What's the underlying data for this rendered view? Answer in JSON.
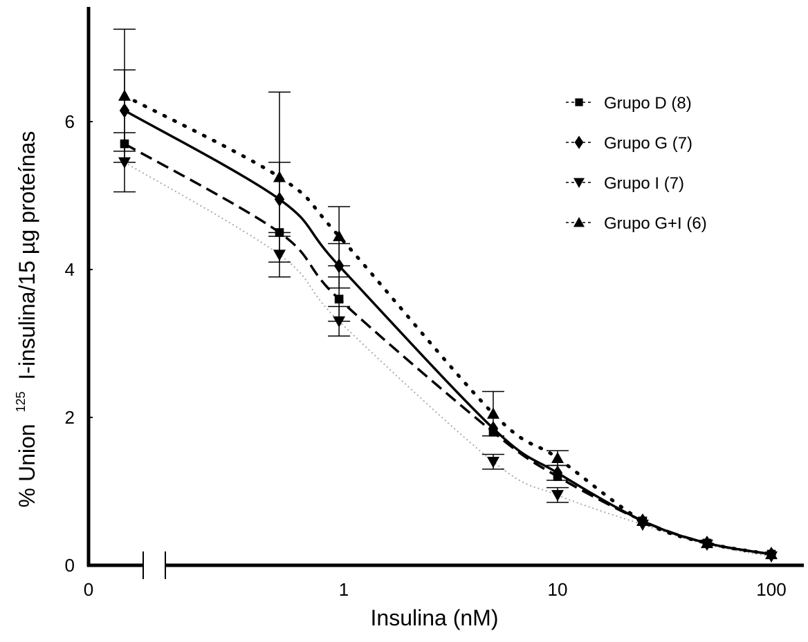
{
  "chart_data": {
    "type": "line",
    "title": "",
    "xlabel": "Insulina (nM)",
    "ylabel_prefix": "% Union",
    "ylabel_superscript": "125",
    "ylabel_suffix": "I-insulina/15 µg proteínas",
    "x_scale": "log with axis break (control point at 0)",
    "x_ticks": [
      "0",
      "1",
      "10",
      "100"
    ],
    "y_ticks": [
      "0",
      "2",
      "4",
      "6"
    ],
    "ylim": [
      0,
      7.3
    ],
    "grid": false,
    "legend_position": "top-right",
    "x": [
      0,
      0.5,
      0.95,
      5,
      10,
      25,
      50,
      100
    ],
    "series": [
      {
        "name": "Grupo D (8)",
        "marker": "square",
        "line_style": "dashed",
        "points": [
          [
            0,
            5.7
          ],
          [
            0.5,
            4.5
          ],
          [
            0.95,
            3.6
          ],
          [
            5,
            1.8
          ],
          [
            10,
            1.2
          ],
          [
            25,
            0.6
          ],
          [
            50,
            0.3
          ],
          [
            100,
            0.15
          ]
        ],
        "error": [
          0,
          0,
          0.3,
          0,
          0,
          0,
          0,
          0
        ]
      },
      {
        "name": "Grupo G (7)",
        "marker": "diamond",
        "line_style": "solid",
        "points": [
          [
            0,
            6.15
          ],
          [
            0.5,
            4.95
          ],
          [
            0.95,
            4.05
          ],
          [
            5,
            1.85
          ],
          [
            10,
            1.25
          ],
          [
            25,
            0.6
          ],
          [
            50,
            0.3
          ],
          [
            100,
            0.15
          ]
        ],
        "error": [
          0.55,
          0.5,
          0.3,
          0,
          0.1,
          0,
          0,
          0
        ]
      },
      {
        "name": "Grupo I (7)",
        "marker": "triangle-down",
        "line_style": "gray-dotted",
        "points": [
          [
            0,
            5.45
          ],
          [
            0.5,
            4.2
          ],
          [
            0.95,
            3.3
          ],
          [
            5,
            1.4
          ],
          [
            10,
            0.95
          ],
          [
            25,
            0.55
          ],
          [
            50,
            0.28
          ],
          [
            100,
            0.12
          ]
        ],
        "error": [
          0.4,
          0.3,
          0.2,
          0.1,
          0.1,
          0,
          0,
          0
        ]
      },
      {
        "name": "Grupo G+I (6)",
        "marker": "triangle-up",
        "line_style": "dotted",
        "points": [
          [
            0,
            6.35
          ],
          [
            0.5,
            5.25
          ],
          [
            0.95,
            4.45
          ],
          [
            5,
            2.05
          ],
          [
            10,
            1.45
          ],
          [
            25,
            0.6
          ],
          [
            50,
            0.3
          ],
          [
            100,
            0.15
          ]
        ],
        "error": [
          0.9,
          1.15,
          0.4,
          0.3,
          0.1,
          0,
          0,
          0
        ]
      }
    ]
  }
}
